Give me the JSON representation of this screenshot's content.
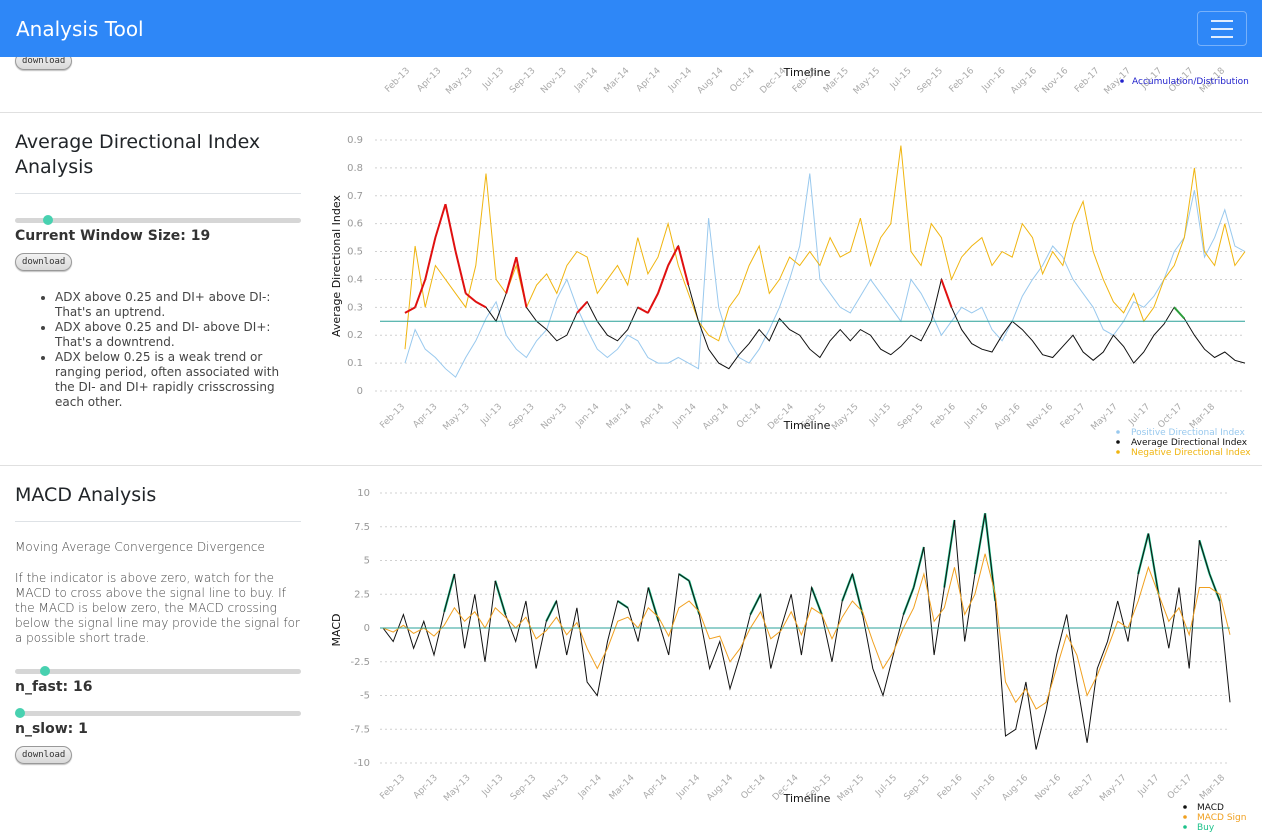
{
  "app": {
    "title": "Analysis Tool"
  },
  "top_chart": {
    "download_label": "download",
    "x_ticks": [
      "Feb-13",
      "Apr-13",
      "May-13",
      "Jul-13",
      "Sep-13",
      "Nov-13",
      "Jan-14",
      "Mar-14",
      "Apr-14",
      "Jun-14",
      "Aug-14",
      "Oct-14",
      "Dec-14",
      "Feb-15",
      "Mar-15",
      "May-15",
      "Jul-15",
      "Sep-15",
      "Feb-16",
      "Jun-16",
      "Aug-16",
      "Nov-16",
      "Feb-17",
      "May-17",
      "Jul-17",
      "Oct-17",
      "Mar-18"
    ],
    "xlabel": "Timeline",
    "legend": [
      "Accumulation/Distribution"
    ],
    "colors": {
      "accdist": "#2222cc"
    }
  },
  "adx": {
    "title": "Average Directional Index Analysis",
    "window_label": "Current Window Size: 19",
    "window_value": 19,
    "window_fraction": 0.1,
    "download_label": "download",
    "bullets": [
      "ADX above 0.25 and DI+ above DI-: That's an uptrend.",
      "ADX above 0.25 and DI- above DI+: That's a downtrend.",
      "ADX below 0.25 is a weak trend or ranging period, often associated with the DI- and DI+ rapidly crisscrossing each other."
    ]
  },
  "macd": {
    "title": "MACD Analysis",
    "subtitle": "Moving Average Convergence Divergence",
    "description": "If the indicator is above zero, watch for the MACD to cross above the signal line to buy. If the MACD is below zero, the MACD crossing below the signal line may provide the signal for a possible short trade.",
    "n_fast_label": "n_fast: 16",
    "n_fast_value": 16,
    "n_fast_fraction": 0.09,
    "n_slow_label": "n_slow: 1",
    "n_slow_value": 1,
    "n_slow_fraction": 0.0,
    "download_label": "download"
  },
  "chart_data": [
    {
      "type": "line",
      "title": "",
      "xlabel": "Timeline",
      "ylabel": "Average Directional Index",
      "ylim": [
        0,
        0.9
      ],
      "y_ticks": [
        "0",
        "0.1",
        "0.2",
        "0.3",
        "0.4",
        "0.5",
        "0.6",
        "0.7",
        "0.8",
        "0.9"
      ],
      "x_ticks": [
        "Feb-13",
        "Apr-13",
        "May-13",
        "Jul-13",
        "Sep-13",
        "Nov-13",
        "Jan-14",
        "Mar-14",
        "Apr-14",
        "Jun-14",
        "Aug-14",
        "Oct-14",
        "Dec-14",
        "Feb-15",
        "May-15",
        "Jul-15",
        "Sep-15",
        "Feb-16",
        "Jun-16",
        "Aug-16",
        "Nov-16",
        "Feb-17",
        "May-17",
        "Jul-17",
        "Oct-17",
        "Mar-18"
      ],
      "threshold": 0.25,
      "grid": true,
      "legend_position": "bottom-right",
      "series": [
        {
          "name": "Positive Directional Index",
          "color": "#99c9ee",
          "values": [
            0.1,
            0.22,
            0.15,
            0.12,
            0.08,
            0.05,
            0.12,
            0.18,
            0.26,
            0.32,
            0.2,
            0.15,
            0.12,
            0.18,
            0.22,
            0.33,
            0.4,
            0.3,
            0.22,
            0.15,
            0.12,
            0.15,
            0.2,
            0.18,
            0.12,
            0.1,
            0.1,
            0.12,
            0.1,
            0.08,
            0.62,
            0.3,
            0.18,
            0.12,
            0.1,
            0.15,
            0.22,
            0.3,
            0.4,
            0.52,
            0.78,
            0.4,
            0.35,
            0.3,
            0.28,
            0.34,
            0.4,
            0.35,
            0.3,
            0.25,
            0.4,
            0.35,
            0.28,
            0.2,
            0.25,
            0.3,
            0.28,
            0.3,
            0.22,
            0.18,
            0.25,
            0.34,
            0.4,
            0.45,
            0.52,
            0.48,
            0.4,
            0.35,
            0.3,
            0.22,
            0.2,
            0.25,
            0.32,
            0.3,
            0.34,
            0.4,
            0.5,
            0.55,
            0.72,
            0.48,
            0.55,
            0.65,
            0.52,
            0.5
          ]
        },
        {
          "name": "Average Directional Index",
          "color": "#111111",
          "values": [
            0.28,
            0.3,
            0.4,
            0.55,
            0.67,
            0.5,
            0.35,
            0.32,
            0.3,
            0.25,
            0.35,
            0.48,
            0.3,
            0.25,
            0.22,
            0.18,
            0.2,
            0.28,
            0.32,
            0.25,
            0.2,
            0.18,
            0.22,
            0.3,
            0.28,
            0.35,
            0.45,
            0.52,
            0.38,
            0.25,
            0.15,
            0.1,
            0.08,
            0.13,
            0.17,
            0.22,
            0.18,
            0.26,
            0.22,
            0.2,
            0.15,
            0.12,
            0.18,
            0.22,
            0.18,
            0.22,
            0.2,
            0.15,
            0.13,
            0.16,
            0.2,
            0.18,
            0.25,
            0.4,
            0.3,
            0.22,
            0.17,
            0.15,
            0.14,
            0.2,
            0.25,
            0.22,
            0.18,
            0.13,
            0.12,
            0.16,
            0.2,
            0.14,
            0.11,
            0.14,
            0.2,
            0.16,
            0.1,
            0.14,
            0.2,
            0.24,
            0.3,
            0.26,
            0.2,
            0.15,
            0.12,
            0.14,
            0.11,
            0.1
          ]
        },
        {
          "name": "Negative Directional Index",
          "color": "#f0b510",
          "values": [
            0.15,
            0.52,
            0.3,
            0.45,
            0.4,
            0.35,
            0.3,
            0.45,
            0.78,
            0.4,
            0.35,
            0.45,
            0.3,
            0.38,
            0.42,
            0.35,
            0.45,
            0.5,
            0.48,
            0.35,
            0.4,
            0.45,
            0.38,
            0.55,
            0.42,
            0.48,
            0.6,
            0.45,
            0.35,
            0.25,
            0.2,
            0.18,
            0.3,
            0.35,
            0.45,
            0.52,
            0.35,
            0.4,
            0.48,
            0.45,
            0.5,
            0.45,
            0.55,
            0.48,
            0.5,
            0.62,
            0.45,
            0.55,
            0.6,
            0.88,
            0.5,
            0.45,
            0.6,
            0.55,
            0.4,
            0.48,
            0.52,
            0.55,
            0.45,
            0.5,
            0.48,
            0.6,
            0.55,
            0.42,
            0.5,
            0.45,
            0.6,
            0.68,
            0.5,
            0.4,
            0.32,
            0.28,
            0.35,
            0.25,
            0.3,
            0.4,
            0.45,
            0.55,
            0.8,
            0.5,
            0.45,
            0.6,
            0.45,
            0.5
          ]
        }
      ]
    },
    {
      "type": "line",
      "title": "",
      "xlabel": "Timeline",
      "ylabel": "MACD",
      "ylim": [
        -10,
        10
      ],
      "y_ticks": [
        "10",
        "7.5",
        "5",
        "2.5",
        "0",
        "-2.5",
        "-5",
        "-7.5",
        "-10"
      ],
      "x_ticks": [
        "Feb-13",
        "Apr-13",
        "May-13",
        "Jul-13",
        "Sep-13",
        "Nov-13",
        "Jan-14",
        "Mar-14",
        "Apr-14",
        "Jun-14",
        "Aug-14",
        "Oct-14",
        "Dec-14",
        "Feb-15",
        "May-15",
        "Jul-15",
        "Sep-15",
        "Feb-16",
        "Jun-16",
        "Aug-16",
        "Nov-16",
        "Feb-17",
        "May-17",
        "Jul-17",
        "Oct-17",
        "Mar-18"
      ],
      "grid": true,
      "legend_position": "bottom-right",
      "series": [
        {
          "name": "MACD",
          "color": "#111111",
          "values": [
            0.0,
            -1.0,
            1.0,
            -1.5,
            0.5,
            -2.0,
            1.2,
            4.0,
            -1.5,
            2.5,
            -2.5,
            3.5,
            1.0,
            -1.0,
            2.0,
            -3.0,
            0.5,
            2.0,
            -2.0,
            1.5,
            -4.0,
            -5.0,
            -1.0,
            2.0,
            1.5,
            -1.0,
            3.0,
            0.5,
            -2.0,
            4.0,
            3.5,
            1.0,
            -3.0,
            -1.0,
            -4.5,
            -2.0,
            1.0,
            2.5,
            -3.0,
            0.0,
            2.5,
            -2.0,
            3.0,
            1.0,
            -2.5,
            2.0,
            4.0,
            1.0,
            -3.0,
            -5.0,
            -2.0,
            1.0,
            3.0,
            6.0,
            -2.0,
            3.0,
            8.0,
            -1.0,
            4.0,
            8.5,
            2.0,
            -8.0,
            -7.5,
            -4.0,
            -9.0,
            -6.0,
            -2.0,
            1.0,
            -4.0,
            -8.5,
            -3.0,
            -1.0,
            2.0,
            -1.0,
            4.0,
            7.0,
            2.5,
            -1.5,
            3.0,
            -3.0,
            6.5,
            4.0,
            2.0,
            -5.5
          ]
        },
        {
          "name": "MACD Signal",
          "color": "#f0a020",
          "values": [
            0.0,
            -0.3,
            0.2,
            -0.4,
            0.0,
            -0.6,
            0.2,
            1.5,
            0.5,
            1.2,
            0.0,
            1.5,
            0.8,
            0.0,
            0.8,
            -0.8,
            -0.2,
            0.8,
            -0.5,
            0.4,
            -1.5,
            -3.0,
            -1.5,
            0.5,
            0.8,
            0.0,
            1.5,
            0.8,
            -0.6,
            1.5,
            2.0,
            1.2,
            -0.8,
            -0.6,
            -2.5,
            -1.5,
            0.0,
            1.2,
            -0.8,
            -0.2,
            1.2,
            -0.5,
            1.5,
            1.0,
            -0.8,
            0.8,
            2.0,
            1.2,
            -1.0,
            -3.0,
            -1.8,
            0.0,
            1.5,
            4.0,
            0.5,
            1.5,
            4.5,
            1.0,
            2.5,
            5.5,
            2.5,
            -4.0,
            -5.5,
            -4.5,
            -6.0,
            -5.5,
            -3.0,
            -0.5,
            -2.0,
            -5.0,
            -3.5,
            -1.5,
            0.5,
            0.0,
            2.0,
            4.5,
            2.5,
            0.5,
            1.5,
            -0.5,
            3.0,
            3.0,
            2.5,
            -0.5
          ]
        }
      ]
    }
  ],
  "legends": {
    "adx": [
      "Positive Directional Index",
      "Average Directional Index",
      "Negative Directional Index"
    ],
    "macd": [
      "MACD",
      "MACD Sign",
      "Buy"
    ]
  },
  "colors": {
    "accent": "#48d1b0",
    "navbar": "#2e87f7",
    "buy": "#1ec28b",
    "uptrend": "#e01010",
    "downtrend": "#2a9d3a",
    "threshold": "#2aa198"
  }
}
